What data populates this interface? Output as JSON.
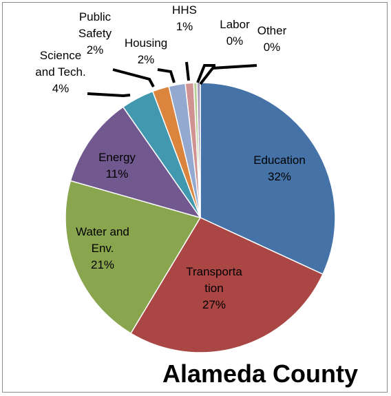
{
  "chart_data": {
    "type": "pie",
    "title": "Alameda County",
    "series": [
      {
        "values": [
          32,
          27,
          21,
          11,
          4,
          2,
          2,
          1,
          0,
          0
        ]
      }
    ],
    "categories": [
      "Education",
      "Transportation",
      "Water and Env.",
      "Energy",
      "Science and Tech.",
      "Public Safety",
      "Housing",
      "HHS",
      "Labor",
      "Other"
    ],
    "slices": [
      {
        "label_lines": [
          "Education",
          "32%"
        ],
        "value": 32.2,
        "percent_text": "32%",
        "color": "#4572a7"
      },
      {
        "label_lines": [
          "Transporta",
          "tion",
          "27%"
        ],
        "value": 27.0,
        "percent_text": "27%",
        "color": "#aa4643"
      },
      {
        "label_lines": [
          "Water and",
          "Env.",
          "21%"
        ],
        "value": 21.0,
        "percent_text": "21%",
        "color": "#89a54e"
      },
      {
        "label_lines": [
          "Energy",
          "11%"
        ],
        "value": 11.0,
        "percent_text": "11%",
        "color": "#71588f"
      },
      {
        "label_lines": [
          "Science",
          "and Tech.",
          "4%"
        ],
        "value": 4.0,
        "percent_text": "4%",
        "color": "#4198af"
      },
      {
        "label_lines": [
          "Public",
          "Safety",
          "2%"
        ],
        "value": 2.0,
        "percent_text": "2%",
        "color": "#db843d"
      },
      {
        "label_lines": [
          "Housing",
          "2%"
        ],
        "value": 2.0,
        "percent_text": "2%",
        "color": "#93a9cf"
      },
      {
        "label_lines": [
          "HHS",
          "1%"
        ],
        "value": 1.0,
        "percent_text": "1%",
        "color": "#d19392"
      },
      {
        "label_lines": [
          "Labor",
          "0%"
        ],
        "value": 0.4,
        "percent_text": "0%",
        "color": "#b9cd96"
      },
      {
        "label_lines": [
          "Other",
          "0%"
        ],
        "value": 0.4,
        "percent_text": "0%",
        "color": "#a99bbd"
      }
    ]
  }
}
